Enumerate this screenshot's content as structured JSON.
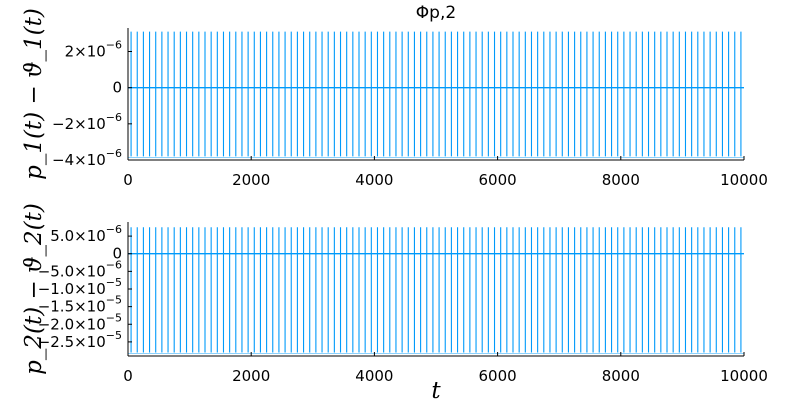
{
  "chart_data": [
    {
      "type": "line",
      "title": "Φp,2",
      "xlabel": "",
      "ylabel": "p_1(t) − ϑ_1(t)",
      "xlim": [
        0,
        10000
      ],
      "ylim": [
        -4e-06,
        3.3e-06
      ],
      "xticks": [
        0,
        2000,
        4000,
        6000,
        8000,
        10000
      ],
      "xtick_labels": [
        "0",
        "2000",
        "4000",
        "6000",
        "8000",
        "10000"
      ],
      "yticks": [
        2e-06,
        0,
        -2e-06,
        -4e-06
      ],
      "ytick_labels": [
        {
          "m": "2×10",
          "e": "−6"
        },
        {
          "m": "0",
          "e": ""
        },
        {
          "m": "−2×10",
          "e": "−6"
        },
        {
          "m": "−4×10",
          "e": "−6"
        }
      ],
      "grid": false,
      "legend": "none",
      "color": "#009AFA",
      "series": [
        {
          "spike_period": 100,
          "spike_max": 3.1e-06,
          "spike_min": -3.8e-06,
          "baseline": 0
        }
      ]
    },
    {
      "type": "line",
      "title": "",
      "xlabel": "t",
      "ylabel": "p_2(t) − ϑ_2(t)",
      "xlim": [
        0,
        10000
      ],
      "ylim": [
        -2.9e-05,
        9e-06
      ],
      "xticks": [
        0,
        2000,
        4000,
        6000,
        8000,
        10000
      ],
      "xtick_labels": [
        "0",
        "2000",
        "4000",
        "6000",
        "8000",
        "10000"
      ],
      "yticks": [
        5e-06,
        0,
        -5e-06,
        -1e-05,
        -1.5e-05,
        -2e-05,
        -2.5e-05
      ],
      "ytick_labels": [
        {
          "m": "5.0×10",
          "e": "−6"
        },
        {
          "m": "0",
          "e": ""
        },
        {
          "m": "−5.0×10",
          "e": "−6"
        },
        {
          "m": "−1.0×10",
          "e": "−5"
        },
        {
          "m": "−1.5×10",
          "e": "−5"
        },
        {
          "m": "−2.0×10",
          "e": "−5"
        },
        {
          "m": "−2.5×10",
          "e": "−5"
        }
      ],
      "grid": false,
      "legend": "none",
      "color": "#009AFA",
      "series": [
        {
          "spike_period": 100,
          "spike_max": 7.5e-06,
          "spike_min": -2.8e-05,
          "baseline": 0
        }
      ]
    }
  ]
}
